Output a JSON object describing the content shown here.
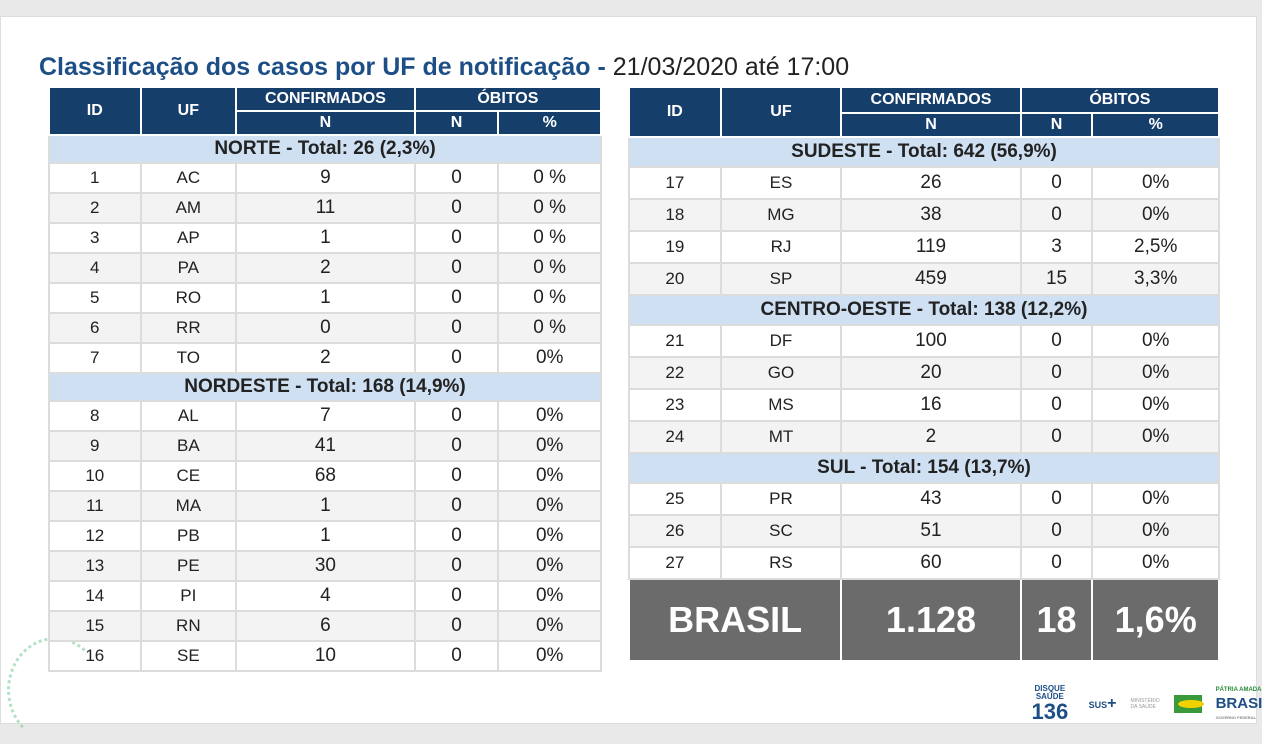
{
  "title": {
    "main": "Classificação dos casos por UF de notificação - ",
    "date": "21/03/2020 até 17:00"
  },
  "headers": {
    "id": "ID",
    "uf": "UF",
    "confirmados": "CONFIRMADOS",
    "obitos": "ÓBITOS",
    "n": "N",
    "pct": "%"
  },
  "left": [
    {
      "region": "NORTE - Total: 26 (2,3%)",
      "rows": [
        [
          "1",
          "AC",
          "9",
          "0",
          "0 %"
        ],
        [
          "2",
          "AM",
          "11",
          "0",
          "0 %"
        ],
        [
          "3",
          "AP",
          "1",
          "0",
          "0 %"
        ],
        [
          "4",
          "PA",
          "2",
          "0",
          "0 %"
        ],
        [
          "5",
          "RO",
          "1",
          "0",
          "0 %"
        ],
        [
          "6",
          "RR",
          "0",
          "0",
          "0 %"
        ],
        [
          "7",
          "TO",
          "2",
          "0",
          "0%"
        ]
      ]
    },
    {
      "region": "NORDESTE - Total: 168 (14,9%)",
      "rows": [
        [
          "8",
          "AL",
          "7",
          "0",
          "0%"
        ],
        [
          "9",
          "BA",
          "41",
          "0",
          "0%"
        ],
        [
          "10",
          "CE",
          "68",
          "0",
          "0%"
        ],
        [
          "11",
          "MA",
          "1",
          "0",
          "0%"
        ],
        [
          "12",
          "PB",
          "1",
          "0",
          "0%"
        ],
        [
          "13",
          "PE",
          "30",
          "0",
          "0%"
        ],
        [
          "14",
          "PI",
          "4",
          "0",
          "0%"
        ],
        [
          "15",
          "RN",
          "6",
          "0",
          "0%"
        ],
        [
          "16",
          "SE",
          "10",
          "0",
          "0%"
        ]
      ]
    }
  ],
  "right": [
    {
      "region": "SUDESTE - Total: 642 (56,9%)",
      "rows": [
        [
          "17",
          "ES",
          "26",
          "0",
          "0%"
        ],
        [
          "18",
          "MG",
          "38",
          "0",
          "0%"
        ],
        [
          "19",
          "RJ",
          "119",
          "3",
          "2,5%"
        ],
        [
          "20",
          "SP",
          "459",
          "15",
          "3,3%"
        ]
      ]
    },
    {
      "region": "CENTRO-OESTE - Total: 138 (12,2%)",
      "rows": [
        [
          "21",
          "DF",
          "100",
          "0",
          "0%"
        ],
        [
          "22",
          "GO",
          "20",
          "0",
          "0%"
        ],
        [
          "23",
          "MS",
          "16",
          "0",
          "0%"
        ],
        [
          "24",
          "MT",
          "2",
          "0",
          "0%"
        ]
      ]
    },
    {
      "region": "SUL - Total: 154 (13,7%)",
      "rows": [
        [
          "25",
          "PR",
          "43",
          "0",
          "0%"
        ],
        [
          "26",
          "SC",
          "51",
          "0",
          "0%"
        ],
        [
          "27",
          "RS",
          "60",
          "0",
          "0%"
        ]
      ]
    }
  ],
  "total": {
    "label": "BRASIL",
    "confirmados": "1.128",
    "obitos": "18",
    "pct": "1,6%"
  },
  "logos": {
    "disque": "DISQUE SAÚDE",
    "num": "136",
    "sus": "SUS",
    "ministerio": "MINISTÉRIO DA SAÚDE",
    "patria": "PÁTRIA AMADA",
    "brasil": "BRASIL",
    "gov": "GOVERNO FEDERAL"
  }
}
